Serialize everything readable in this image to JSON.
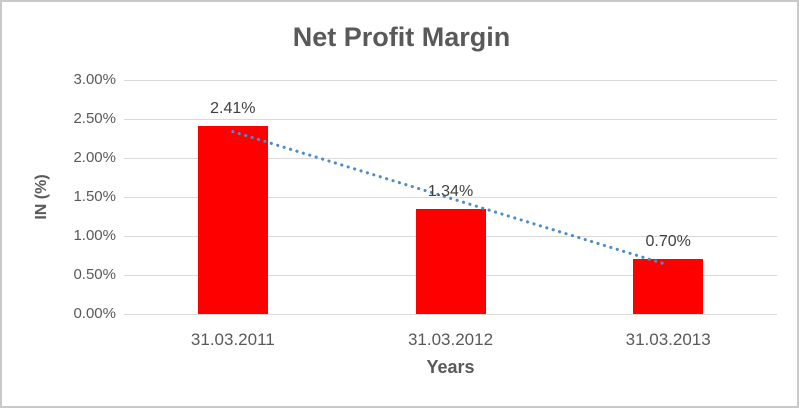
{
  "chart_data": {
    "type": "bar",
    "title": "Net Profit Margin",
    "xlabel": "Years",
    "ylabel": "IN (%)",
    "categories": [
      "31.03.2011",
      "31.03.2012",
      "31.03.2013"
    ],
    "values": [
      2.41,
      1.34,
      0.7
    ],
    "data_labels": [
      "2.41%",
      "1.34%",
      "0.70%"
    ],
    "y_ticks": [
      "0.00%",
      "0.50%",
      "1.00%",
      "1.50%",
      "2.00%",
      "2.50%",
      "3.00%"
    ],
    "y_tick_values": [
      0,
      0.5,
      1.0,
      1.5,
      2.0,
      2.5,
      3.0
    ],
    "ylim": [
      0,
      3.0
    ],
    "grid": true,
    "legend": "none",
    "bar_color": "#FF0000",
    "trendline": {
      "type": "linear",
      "style": "dotted",
      "color": "#4E8BC8"
    }
  },
  "colors": {
    "text": "#595959",
    "data_label_text": "#404040",
    "gridline": "#D9D9D9",
    "frame_border": "#C9C9C9",
    "background": "#FFFFFF"
  }
}
